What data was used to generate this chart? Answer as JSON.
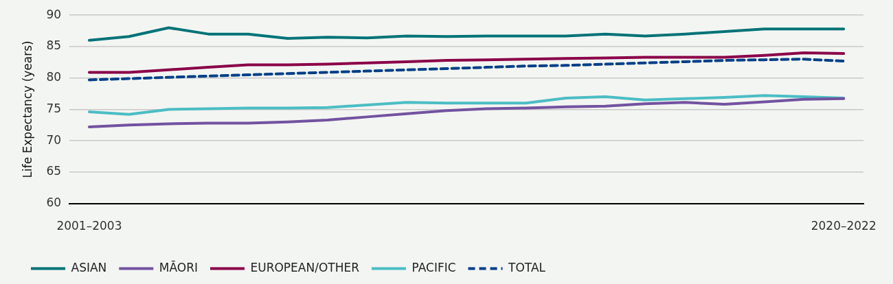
{
  "chart_data": {
    "type": "line",
    "ylabel": "Life Expectancy (years)",
    "categories": [
      "2001–2003",
      null,
      null,
      null,
      null,
      null,
      null,
      null,
      null,
      null,
      null,
      null,
      null,
      null,
      null,
      null,
      null,
      null,
      null,
      "2020–2022"
    ],
    "ylim": [
      60,
      90
    ],
    "yticks": [
      60,
      65,
      70,
      75,
      80,
      85,
      90
    ],
    "grid": "y",
    "legend": "bottom",
    "marker": "none",
    "series": [
      {
        "name": "ASIAN",
        "color": "#007377",
        "values": [
          86.0,
          86.6,
          88.0,
          87.0,
          87.0,
          86.3,
          86.5,
          86.4,
          86.7,
          86.6,
          86.7,
          86.7,
          86.7,
          87.0,
          86.7,
          87.0,
          87.4,
          87.8,
          87.8,
          87.8
        ]
      },
      {
        "name": "MĀORI",
        "color": "#7252a0",
        "values": [
          72.2,
          72.5,
          72.7,
          72.8,
          72.8,
          73.0,
          73.3,
          73.8,
          74.3,
          74.8,
          75.1,
          75.2,
          75.4,
          75.5,
          75.9,
          76.1,
          75.8,
          76.2,
          76.6,
          76.7
        ]
      },
      {
        "name": "EUROPEAN/OTHER",
        "color": "#8a0048",
        "values": [
          80.9,
          80.9,
          81.3,
          81.7,
          82.1,
          82.1,
          82.2,
          82.4,
          82.6,
          82.8,
          82.9,
          83.0,
          83.1,
          83.2,
          83.3,
          83.3,
          83.3,
          83.6,
          84.0,
          83.9
        ]
      },
      {
        "name": "PACIFIC",
        "color": "#4bbdc4",
        "values": [
          74.6,
          74.2,
          75.0,
          75.1,
          75.2,
          75.2,
          75.3,
          75.7,
          76.1,
          76.0,
          76.0,
          76.0,
          76.8,
          77.0,
          76.5,
          76.7,
          76.9,
          77.2,
          77.0,
          76.8
        ]
      },
      {
        "name": "TOTAL",
        "color": "#003f87",
        "line_style": "dashed",
        "values": [
          79.7,
          79.9,
          80.1,
          80.3,
          80.5,
          80.7,
          80.9,
          81.1,
          81.3,
          81.5,
          81.7,
          81.9,
          82.0,
          82.2,
          82.4,
          82.6,
          82.8,
          82.9,
          83.0,
          82.7
        ]
      }
    ]
  }
}
